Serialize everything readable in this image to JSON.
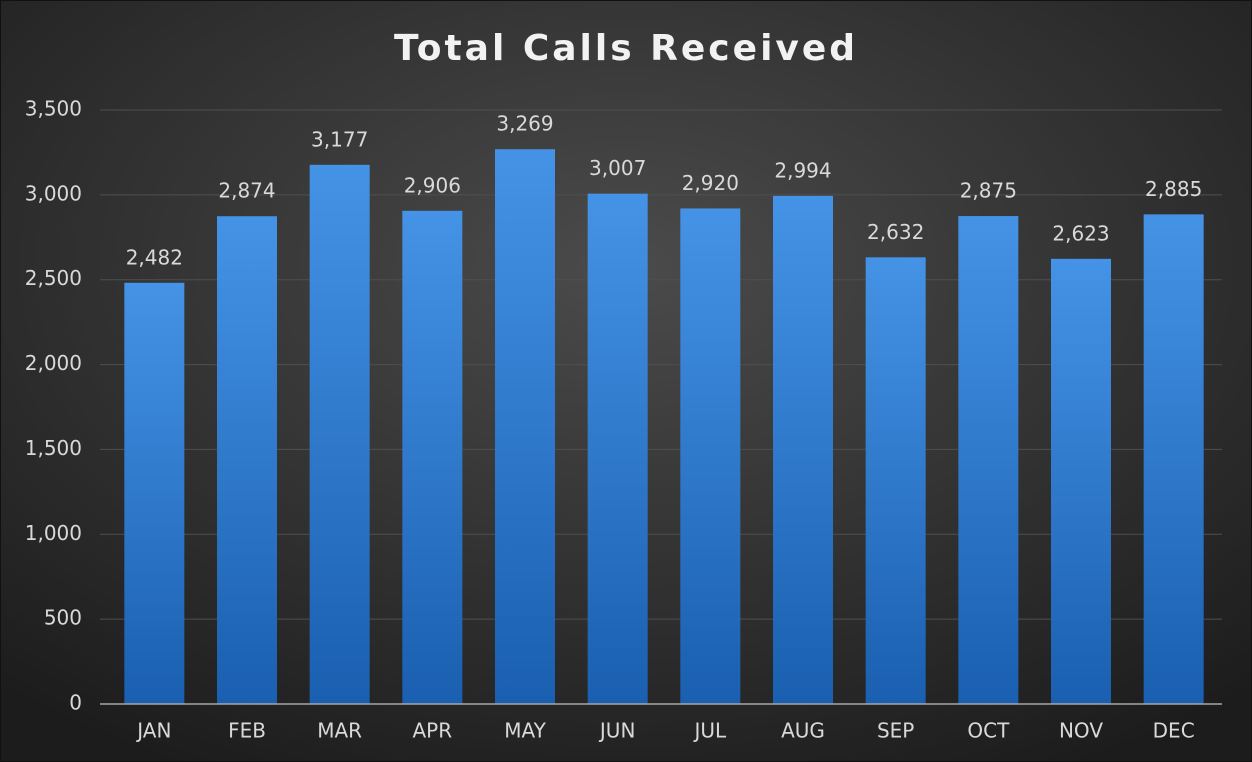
{
  "chart_data": {
    "type": "bar",
    "title": "Total Calls Received",
    "categories": [
      "JAN",
      "FEB",
      "MAR",
      "APR",
      "MAY",
      "JUN",
      "JUL",
      "AUG",
      "SEP",
      "OCT",
      "NOV",
      "DEC"
    ],
    "values": [
      2482,
      2874,
      3177,
      2906,
      3269,
      3007,
      2920,
      2994,
      2632,
      2875,
      2623,
      2885
    ],
    "value_labels": [
      "2,482",
      "2,874",
      "3,177",
      "2,906",
      "3,269",
      "3,007",
      "2,920",
      "2,994",
      "2,632",
      "2,875",
      "2,623",
      "2,885"
    ],
    "color": "#3a86d8",
    "ylim": [
      0,
      3500
    ],
    "yticks": [
      0,
      500,
      {
        "value": 1000,
        "label": "1,000"
      },
      {
        "value": 1500,
        "label": "1,500"
      },
      {
        "value": 2000,
        "label": "2,000"
      },
      {
        "value": 2500,
        "label": "2,500"
      },
      {
        "value": 3000,
        "label": "3,000"
      },
      {
        "value": 3500,
        "label": "3,500"
      }
    ],
    "grid": true
  }
}
